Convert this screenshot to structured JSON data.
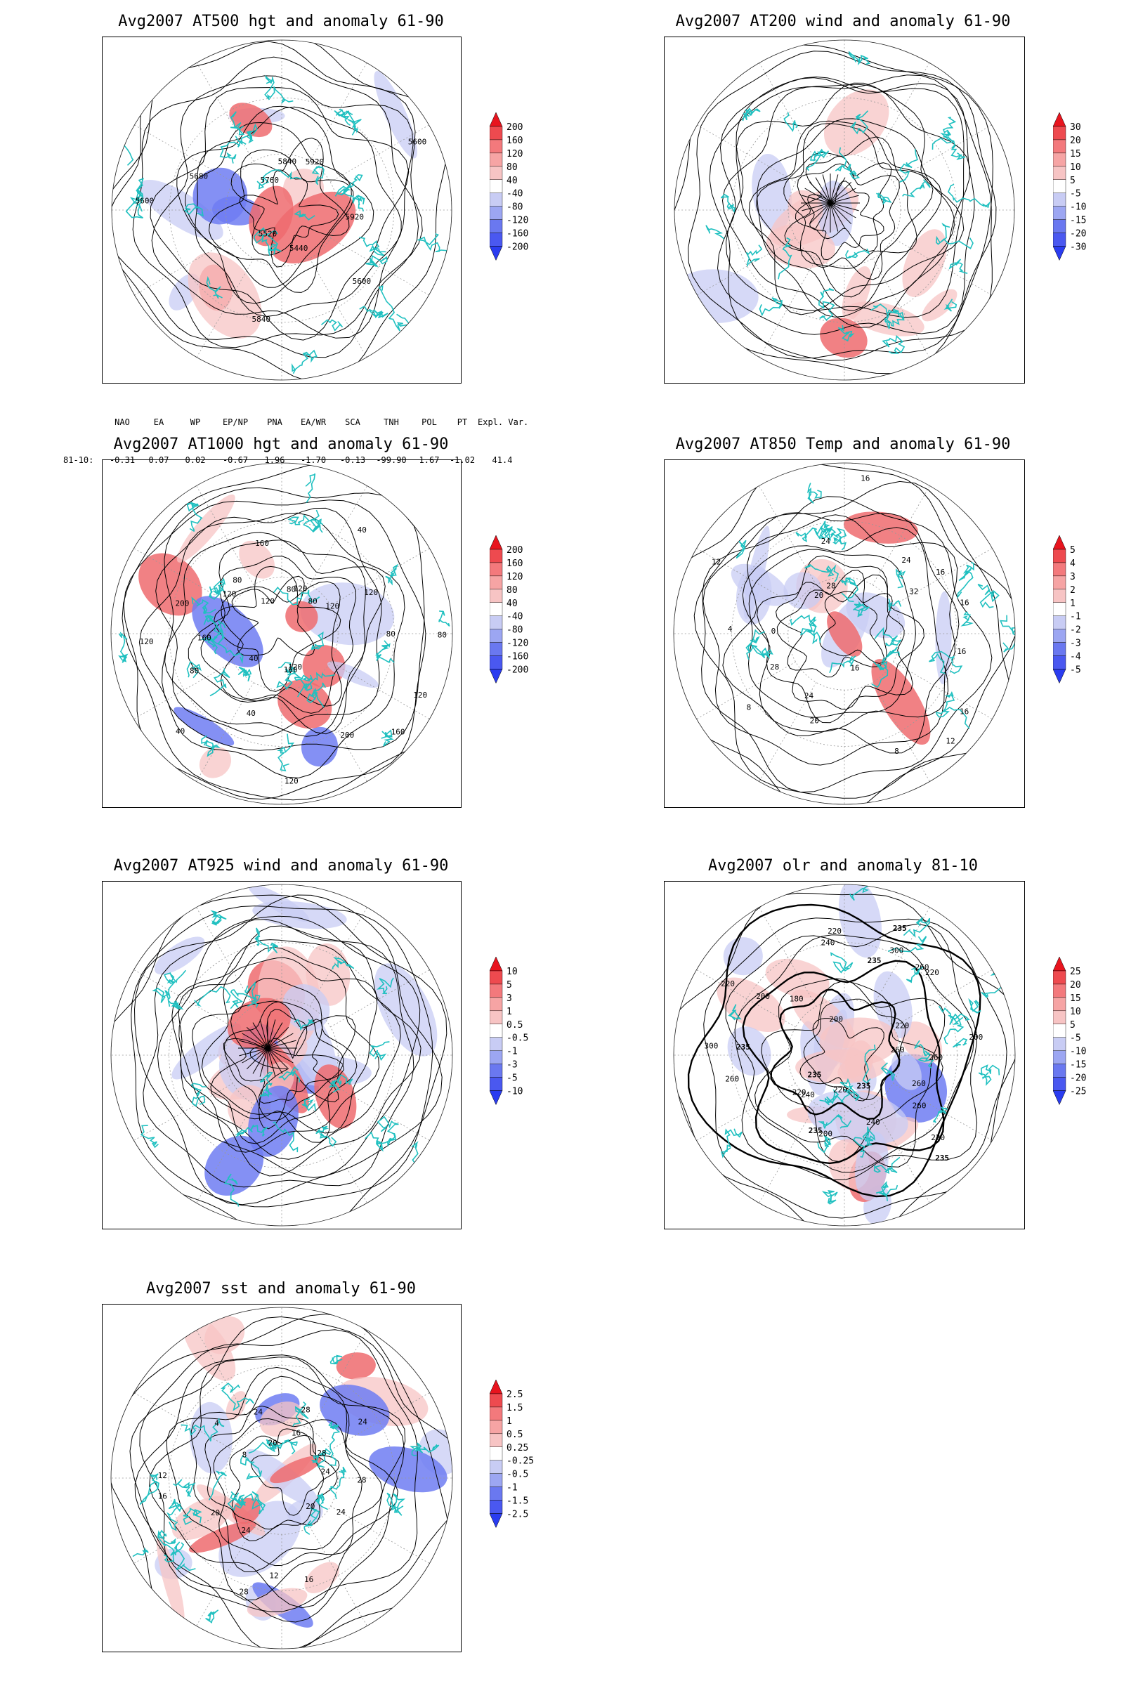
{
  "panels": [
    {
      "id": "at500",
      "title": "Avg2007 AT500 hgt and anomaly 61-90",
      "colorbar": [
        "200",
        "160",
        "120",
        "80",
        "40",
        "-40",
        "-80",
        "-120",
        "-160",
        "-200"
      ],
      "contour_labels": [
        "5920",
        "5600",
        "5440",
        "5840",
        "5520",
        "5600",
        "5680",
        "5760",
        "5840",
        "5920",
        "5600"
      ]
    },
    {
      "id": "at200",
      "title": "Avg2007 AT200 wind and anomaly 61-90",
      "colorbar": [
        "30",
        "20",
        "15",
        "10",
        "5",
        "-5",
        "-10",
        "-15",
        "-20",
        "-30"
      ],
      "contour_labels": []
    },
    {
      "id": "at1000",
      "title": "Avg2007 AT1000 hgt and anomaly 61-90",
      "colorbar": [
        "200",
        "160",
        "120",
        "80",
        "40",
        "-40",
        "-80",
        "-120",
        "-160",
        "-200"
      ],
      "contour_labels": [
        "80",
        "120",
        "160",
        "200",
        "120",
        "160",
        "120",
        "40",
        "40",
        "40",
        "80",
        "120",
        "160",
        "200",
        "120",
        "80",
        "120",
        "160",
        "80",
        "120",
        "40",
        "80",
        "120",
        "120",
        "80"
      ]
    },
    {
      "id": "at850",
      "title": "Avg2007 AT850 Temp and anomaly 61-90",
      "colorbar": [
        "5",
        "4",
        "3",
        "2",
        "1",
        "-1",
        "-2",
        "-3",
        "-4",
        "-5"
      ],
      "contour_labels": [
        "16",
        "16",
        "12",
        "8",
        "16",
        "20",
        "24",
        "8",
        "28",
        "4",
        "0",
        "12",
        "20",
        "28",
        "24",
        "16",
        "24",
        "32",
        "16",
        "16"
      ]
    },
    {
      "id": "at925",
      "title": "Avg2007 AT925 wind and anomaly 61-90",
      "colorbar": [
        "10",
        "5",
        "3",
        "1",
        "0.5",
        "-0.5",
        "-1",
        "-3",
        "-5",
        "-10"
      ],
      "contour_labels": []
    },
    {
      "id": "olr",
      "title": "Avg2007 olr and anomaly 81-10",
      "colorbar": [
        "25",
        "20",
        "15",
        "10",
        "5",
        "-5",
        "-10",
        "-15",
        "-20",
        "-25"
      ],
      "contour_labels": [
        "260",
        "260",
        "220",
        "260",
        "235",
        "235",
        "240",
        "220",
        "200",
        "235",
        "240",
        "220",
        "235",
        "260",
        "300",
        "235",
        "220",
        "200",
        "180",
        "200",
        "220",
        "240",
        "235",
        "300",
        "235",
        "260",
        "220",
        "220",
        "200",
        "260"
      ]
    },
    {
      "id": "sst",
      "title": "Avg2007 sst and anomaly 61-90",
      "colorbar": [
        "2.5",
        "1.5",
        "1",
        "0.5",
        "0.25",
        "-0.25",
        "-0.5",
        "-1",
        "-1.5",
        "-2.5"
      ],
      "contour_labels": [
        "28",
        "24",
        "20",
        "16",
        "12",
        "28",
        "24",
        "20",
        "16",
        "12",
        "8",
        "4",
        "24",
        "20",
        "16",
        "28",
        "24",
        "28",
        "24"
      ]
    }
  ],
  "indices": {
    "headers": [
      "NAO",
      "EA",
      "WP",
      "EP/NP",
      "PNA",
      "EA/WR",
      "SCA",
      "TNH",
      "POL",
      "PT",
      "Expl. Var."
    ],
    "row_label": "81-10:",
    "values": [
      "-0.31",
      "0.07",
      "0.02",
      "-0.67",
      "1.96",
      "-1.70",
      "-0.13",
      "-99.90",
      "1.67",
      "-1.02",
      "41.4"
    ]
  },
  "colors": {
    "coast": "#20c0c0",
    "pos_strong": "#e8141e",
    "pos_light": "#f7c4c4",
    "neg_strong": "#2a3cf0",
    "neg_light": "#c8ccf4",
    "contour": "#000000"
  }
}
